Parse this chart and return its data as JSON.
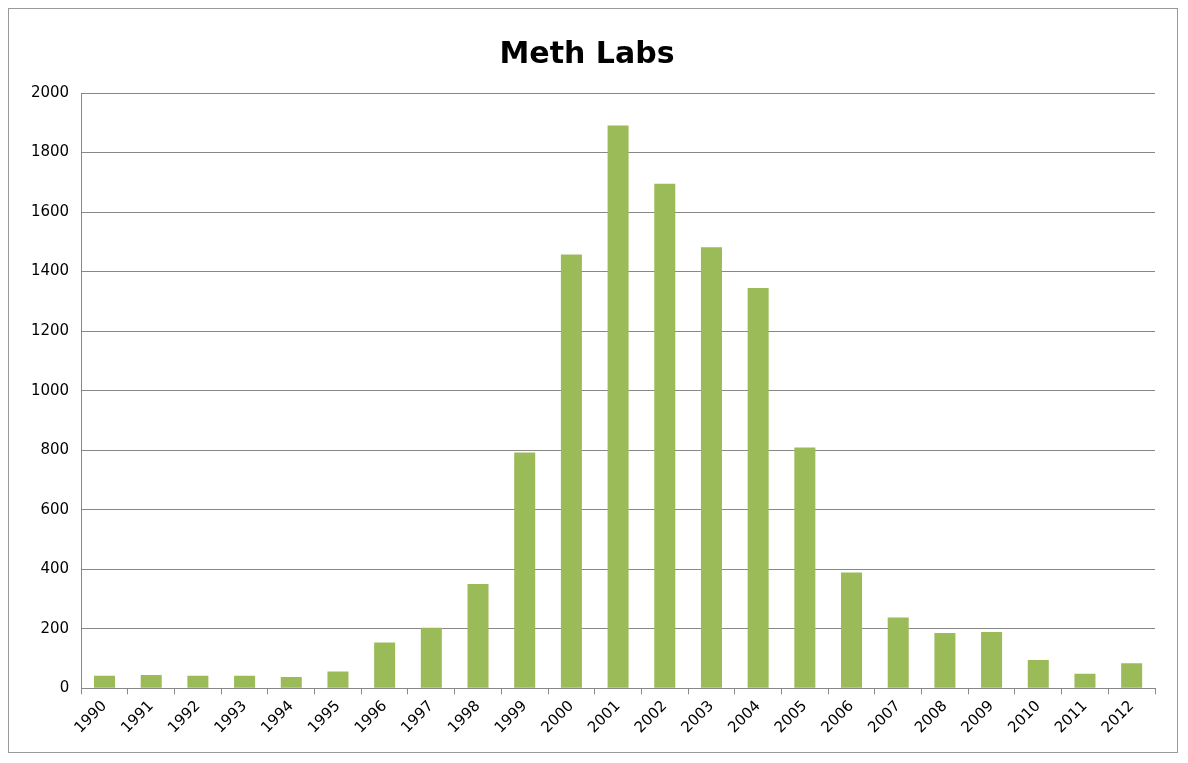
{
  "chart_data": {
    "type": "bar",
    "title": "Meth Labs",
    "categories": [
      "1990",
      "1991",
      "1992",
      "1993",
      "1994",
      "1995",
      "1996",
      "1997",
      "1998",
      "1999",
      "2000",
      "2001",
      "2002",
      "2003",
      "2004",
      "2005",
      "2006",
      "2007",
      "2008",
      "2009",
      "2010",
      "2011",
      "2012"
    ],
    "values": [
      42,
      45,
      42,
      42,
      38,
      56,
      154,
      203,
      350,
      792,
      1457,
      1891,
      1695,
      1482,
      1345,
      809,
      389,
      238,
      186,
      189,
      95,
      49,
      84
    ],
    "color": "#9bbb59",
    "ylim": [
      0,
      2000
    ],
    "yticks": [
      0,
      200,
      400,
      600,
      800,
      1000,
      1200,
      1400,
      1600,
      1800,
      2000
    ],
    "grid": "y",
    "legend": false
  }
}
